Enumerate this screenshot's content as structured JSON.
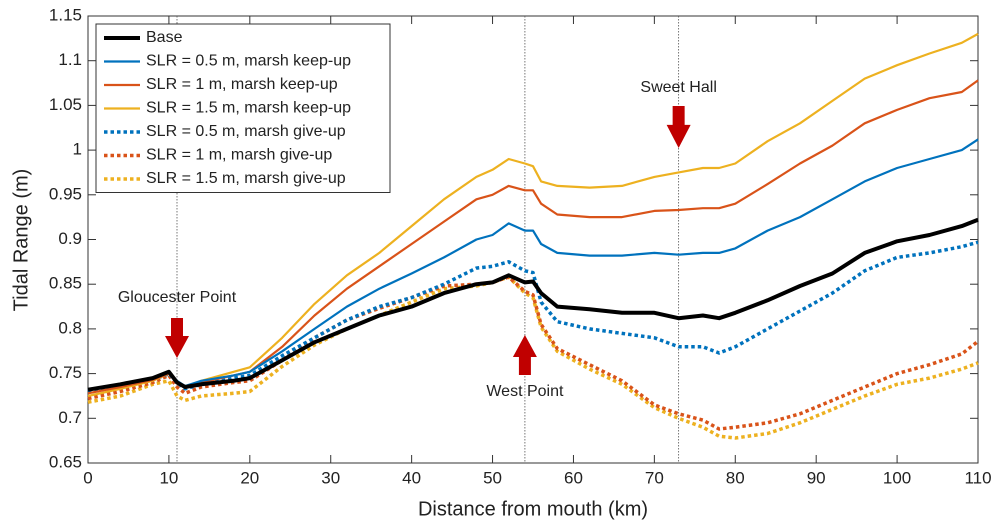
{
  "chart_data": {
    "type": "line",
    "xlabel": "Distance from mouth (km)",
    "ylabel": "Tidal Range (m)",
    "x": [
      0,
      4,
      8,
      10,
      11,
      12,
      14,
      18,
      20,
      24,
      28,
      32,
      36,
      40,
      44,
      48,
      50,
      52,
      54,
      55,
      56,
      58,
      62,
      66,
      70,
      73,
      76,
      78,
      80,
      84,
      88,
      92,
      96,
      100,
      104,
      108,
      110
    ],
    "series": [
      {
        "name": "Base",
        "color": "#000000",
        "style": "solid",
        "width": 4,
        "values": [
          0.732,
          0.738,
          0.745,
          0.752,
          0.74,
          0.735,
          0.738,
          0.742,
          0.745,
          0.765,
          0.785,
          0.8,
          0.815,
          0.825,
          0.84,
          0.85,
          0.852,
          0.86,
          0.852,
          0.853,
          0.84,
          0.825,
          0.822,
          0.818,
          0.818,
          0.812,
          0.815,
          0.812,
          0.818,
          0.832,
          0.848,
          0.862,
          0.885,
          0.898,
          0.905,
          0.915,
          0.922
        ]
      },
      {
        "name": "SLR = 0.5 m, marsh keep-up",
        "color": "#0072BD",
        "style": "solid",
        "width": 2.2,
        "values": [
          0.732,
          0.738,
          0.745,
          0.752,
          0.742,
          0.736,
          0.742,
          0.748,
          0.752,
          0.775,
          0.8,
          0.825,
          0.845,
          0.862,
          0.88,
          0.9,
          0.905,
          0.918,
          0.91,
          0.91,
          0.895,
          0.885,
          0.882,
          0.882,
          0.885,
          0.883,
          0.885,
          0.885,
          0.89,
          0.91,
          0.925,
          0.945,
          0.965,
          0.98,
          0.99,
          1.0,
          1.012
        ]
      },
      {
        "name": "SLR = 1 m, marsh keep-up",
        "color": "#D95319",
        "style": "solid",
        "width": 2.2,
        "values": [
          0.728,
          0.735,
          0.743,
          0.75,
          0.74,
          0.734,
          0.74,
          0.748,
          0.752,
          0.78,
          0.815,
          0.845,
          0.87,
          0.895,
          0.92,
          0.945,
          0.95,
          0.96,
          0.955,
          0.955,
          0.94,
          0.928,
          0.925,
          0.925,
          0.932,
          0.933,
          0.935,
          0.935,
          0.94,
          0.962,
          0.985,
          1.005,
          1.03,
          1.045,
          1.058,
          1.065,
          1.078
        ]
      },
      {
        "name": "SLR = 1.5 m, marsh keep-up",
        "color": "#EDB120",
        "style": "solid",
        "width": 2.2,
        "values": [
          0.725,
          0.733,
          0.742,
          0.75,
          0.74,
          0.735,
          0.742,
          0.752,
          0.757,
          0.79,
          0.828,
          0.86,
          0.885,
          0.915,
          0.945,
          0.97,
          0.978,
          0.99,
          0.985,
          0.982,
          0.965,
          0.96,
          0.958,
          0.96,
          0.97,
          0.975,
          0.98,
          0.98,
          0.985,
          1.01,
          1.03,
          1.055,
          1.08,
          1.095,
          1.108,
          1.12,
          1.13
        ]
      },
      {
        "name": "SLR = 0.5 m, marsh give-up",
        "color": "#0072BD",
        "style": "dotted",
        "width": 3.5,
        "values": [
          0.73,
          0.736,
          0.743,
          0.75,
          0.74,
          0.733,
          0.738,
          0.745,
          0.748,
          0.77,
          0.79,
          0.81,
          0.825,
          0.835,
          0.85,
          0.868,
          0.87,
          0.875,
          0.865,
          0.863,
          0.83,
          0.808,
          0.8,
          0.795,
          0.79,
          0.78,
          0.78,
          0.773,
          0.78,
          0.8,
          0.82,
          0.84,
          0.865,
          0.88,
          0.885,
          0.892,
          0.897
        ]
      },
      {
        "name": "SLR = 1 m, marsh give-up",
        "color": "#D95319",
        "style": "dotted",
        "width": 3.5,
        "values": [
          0.722,
          0.73,
          0.74,
          0.748,
          0.735,
          0.728,
          0.735,
          0.74,
          0.742,
          0.765,
          0.79,
          0.81,
          0.823,
          0.835,
          0.848,
          0.85,
          0.852,
          0.858,
          0.842,
          0.838,
          0.805,
          0.778,
          0.76,
          0.742,
          0.715,
          0.705,
          0.698,
          0.688,
          0.69,
          0.695,
          0.705,
          0.72,
          0.735,
          0.75,
          0.76,
          0.772,
          0.786
        ]
      },
      {
        "name": "SLR = 1.5 m, marsh give-up",
        "color": "#EDB120",
        "style": "dotted",
        "width": 3.5,
        "values": [
          0.718,
          0.725,
          0.738,
          0.742,
          0.725,
          0.72,
          0.725,
          0.728,
          0.73,
          0.758,
          0.782,
          0.8,
          0.815,
          0.83,
          0.845,
          0.848,
          0.852,
          0.858,
          0.84,
          0.835,
          0.802,
          0.775,
          0.755,
          0.738,
          0.712,
          0.7,
          0.69,
          0.68,
          0.678,
          0.683,
          0.695,
          0.71,
          0.725,
          0.738,
          0.745,
          0.755,
          0.762
        ]
      }
    ],
    "xlim": [
      0,
      110
    ],
    "xticks": [
      0,
      10,
      20,
      30,
      40,
      50,
      60,
      70,
      80,
      90,
      100,
      110
    ],
    "ylim": [
      0.65,
      1.15
    ],
    "yticks": [
      0.65,
      0.7,
      0.75,
      0.8,
      0.85,
      0.9,
      0.95,
      1,
      1.05,
      1.1,
      1.15
    ],
    "legend": "upper left",
    "grid": false,
    "annotations": [
      {
        "label": "Gloucester Point",
        "x": 11,
        "arrow": "down",
        "color": "#C00000"
      },
      {
        "label": "West Point",
        "x": 54,
        "arrow": "up",
        "color": "#C00000"
      },
      {
        "label": "Sweet Hall",
        "x": 73,
        "arrow": "down",
        "color": "#C00000"
      }
    ]
  }
}
